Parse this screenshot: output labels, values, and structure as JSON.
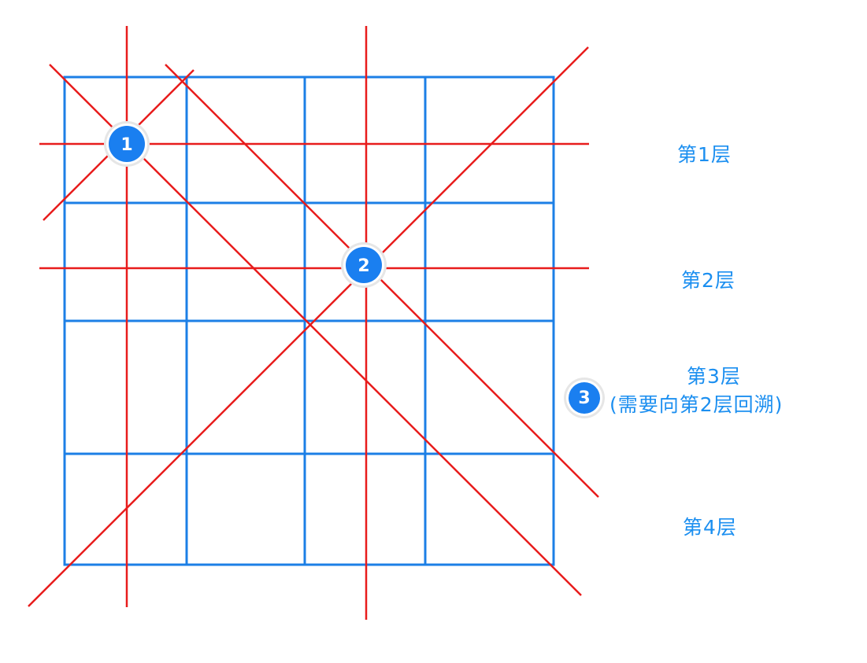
{
  "colors": {
    "grid": "#1c7fe6",
    "attack_line": "#e81c1c",
    "badge_fill": "#1a7ff0",
    "badge_ring": "#e6e6e6",
    "label": "#1c8ff0"
  },
  "badges": [
    {
      "number": "1"
    },
    {
      "number": "2"
    },
    {
      "number": "3"
    }
  ],
  "layers": [
    {
      "label": "第1层"
    },
    {
      "label": "第2层"
    },
    {
      "label": "第3层"
    },
    {
      "label": "第4层"
    }
  ],
  "backtrack_note": "(需要向第2层回溯)"
}
